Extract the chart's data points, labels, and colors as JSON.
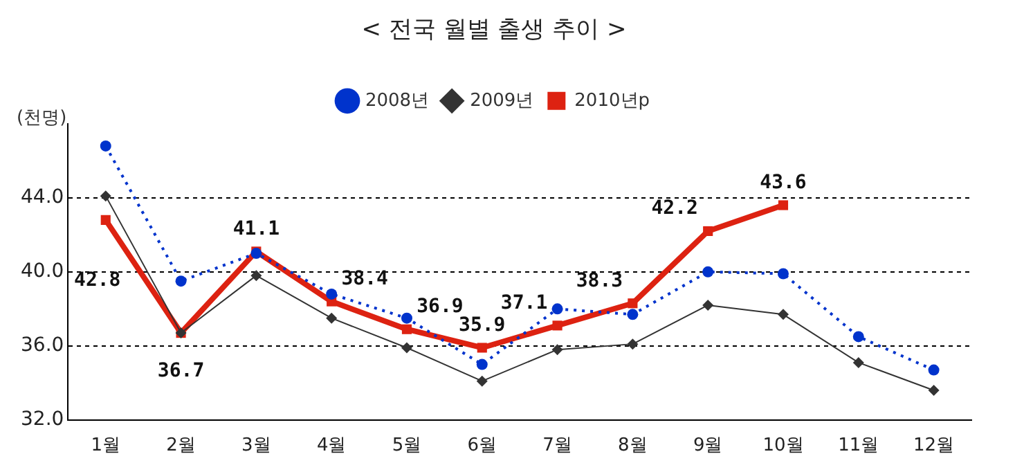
{
  "chart_data": {
    "type": "line",
    "title": "< 전국 월별 출생 추이 >",
    "ylabel": "(천명)",
    "categories": [
      "1월",
      "2월",
      "3월",
      "4월",
      "5월",
      "6월",
      "7월",
      "8월",
      "9월",
      "10월",
      "11월",
      "12월"
    ],
    "series": [
      {
        "name": "2008년",
        "color": "#0033cc",
        "marker": "circle",
        "line_style": "dotted",
        "values": [
          46.8,
          39.5,
          41.0,
          38.8,
          37.5,
          35.0,
          38.0,
          37.7,
          40.0,
          39.9,
          36.5,
          34.7
        ]
      },
      {
        "name": "2009년",
        "color": "#333333",
        "marker": "diamond",
        "line_style": "solid",
        "values": [
          44.1,
          36.7,
          39.8,
          37.5,
          35.9,
          34.1,
          35.8,
          36.1,
          38.2,
          37.7,
          35.1,
          33.6
        ]
      },
      {
        "name": "2010년p",
        "color": "#dd2211",
        "marker": "square",
        "line_style": "solid",
        "values": [
          42.8,
          36.7,
          41.1,
          38.4,
          36.9,
          35.9,
          37.1,
          38.3,
          42.2,
          43.6,
          null,
          null
        ],
        "value_labels": [
          "42.8",
          "36.7",
          "41.1",
          "38.4",
          "36.9",
          "35.9",
          "37.1",
          "38.3",
          "42.2",
          "43.6",
          null,
          null
        ]
      }
    ],
    "ylim": [
      32,
      48
    ],
    "yticks": [
      {
        "value": 32,
        "label": "32.0"
      },
      {
        "value": 36,
        "label": "36.0"
      },
      {
        "value": 40,
        "label": "40.0"
      },
      {
        "value": 44,
        "label": "44.0"
      }
    ],
    "grid": "y",
    "legend": "top"
  }
}
